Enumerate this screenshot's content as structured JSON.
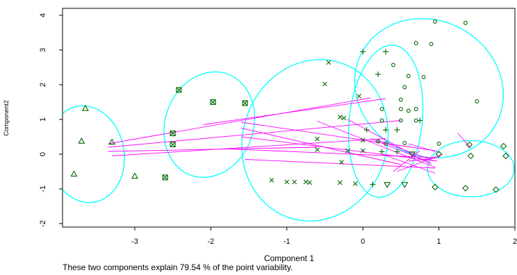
{
  "chart_data": {
    "type": "scatter",
    "title": "",
    "xlabel": "Component 1",
    "ylabel": "Component2",
    "caption": "These two components explain 79.54 % of the point variability.",
    "xlim": [
      -3.95,
      2.0
    ],
    "ylim": [
      -2.1,
      4.2
    ],
    "xticks": [
      -3,
      -2,
      -1,
      0,
      1,
      2
    ],
    "yticks": [
      -2,
      -1,
      0,
      1,
      2,
      3,
      4
    ],
    "grid": false,
    "colors": {
      "points": "#006400",
      "ellipses": "#00ffff",
      "lines": "#ff00ff",
      "axes": "#000000"
    },
    "clusters": [
      {
        "symbol": "triangle",
        "center": [
          -3.65,
          -0.15
        ],
        "points": [
          [
            -3.65,
            1.32
          ],
          [
            -3.7,
            0.38
          ],
          [
            -3.3,
            0.35
          ],
          [
            -3.8,
            -0.57
          ],
          [
            -3.0,
            -0.63
          ]
        ]
      },
      {
        "symbol": "boxed-x",
        "center": [
          -2.1,
          0.5
        ],
        "points": [
          [
            -2.42,
            1.85
          ],
          [
            -1.97,
            1.5
          ],
          [
            -1.55,
            1.47
          ],
          [
            -2.5,
            0.6
          ],
          [
            -2.5,
            0.28
          ],
          [
            -2.6,
            -0.67
          ]
        ]
      },
      {
        "symbol": "x",
        "center": [
          -0.8,
          0.25
        ],
        "points": [
          [
            -0.45,
            2.64
          ],
          [
            -0.5,
            2.02
          ],
          [
            -0.05,
            1.67
          ],
          [
            -0.3,
            1.07
          ],
          [
            -0.25,
            1.04
          ],
          [
            -0.6,
            0.44
          ],
          [
            -0.6,
            0.13
          ],
          [
            -0.2,
            0.1
          ],
          [
            0.0,
            0.4
          ],
          [
            0.0,
            0.1
          ],
          [
            -0.28,
            -0.23
          ],
          [
            -1.2,
            -0.75
          ],
          [
            -1.0,
            -0.8
          ],
          [
            -0.9,
            -0.8
          ],
          [
            -0.75,
            -0.8
          ],
          [
            -0.7,
            -0.82
          ],
          [
            -0.3,
            -0.82
          ],
          [
            -0.1,
            -0.85
          ]
        ]
      },
      {
        "symbol": "plus",
        "center": [
          0.25,
          0.85
        ],
        "points": [
          [
            0.0,
            2.95
          ],
          [
            0.3,
            2.95
          ],
          [
            0.2,
            2.3
          ],
          [
            0.05,
            0.7
          ],
          [
            0.3,
            0.7
          ],
          [
            0.45,
            0.7
          ],
          [
            0.25,
            0.07
          ],
          [
            0.45,
            0.07
          ],
          [
            0.75,
            0.97
          ],
          [
            0.13,
            -0.87
          ]
        ]
      },
      {
        "symbol": "circle",
        "center": [
          1.0,
          2.0
        ],
        "points": [
          [
            0.95,
            3.82
          ],
          [
            1.35,
            3.78
          ],
          [
            0.7,
            3.2
          ],
          [
            0.9,
            3.17
          ],
          [
            0.4,
            2.57
          ],
          [
            0.6,
            2.25
          ],
          [
            0.8,
            2.22
          ],
          [
            0.55,
            1.93
          ],
          [
            1.5,
            1.52
          ],
          [
            0.5,
            1.57
          ],
          [
            0.25,
            1.3
          ],
          [
            0.5,
            1.3
          ],
          [
            0.7,
            1.3
          ],
          [
            0.6,
            1.25
          ],
          [
            0.25,
            0.97
          ],
          [
            0.5,
            0.97
          ],
          [
            0.7,
            0.97
          ],
          [
            0.2,
            0.37
          ],
          [
            0.3,
            0.3
          ],
          [
            0.55,
            0.32
          ],
          [
            1.0,
            0.3
          ]
        ]
      },
      {
        "symbol": "inverted-triangle",
        "center": [
          0.45,
          -0.6
        ],
        "points": [
          [
            0.32,
            -0.88
          ],
          [
            0.55,
            -0.88
          ],
          [
            0.65,
            0.0
          ]
        ]
      },
      {
        "symbol": "diamond",
        "center": [
          1.45,
          -0.5
        ],
        "points": [
          [
            1.0,
            0.0
          ],
          [
            1.4,
            0.27
          ],
          [
            1.85,
            0.23
          ],
          [
            1.42,
            -0.05
          ],
          [
            1.88,
            -0.05
          ],
          [
            0.95,
            -0.95
          ],
          [
            1.35,
            -0.98
          ],
          [
            1.75,
            -1.02
          ]
        ]
      }
    ],
    "ellipses": [
      {
        "cx": -3.64,
        "cy": 0.0,
        "rx": 0.5,
        "ry": 1.4,
        "angle": -10
      },
      {
        "cx": -2.02,
        "cy": 0.85,
        "rx": 0.58,
        "ry": 1.55,
        "angle": 20
      },
      {
        "cx": -0.63,
        "cy": 0.4,
        "rx": 0.95,
        "ry": 2.35,
        "angle": 18
      },
      {
        "cx": 0.3,
        "cy": 0.95,
        "rx": 0.48,
        "ry": 2.2,
        "angle": 6
      },
      {
        "cx": 0.87,
        "cy": 1.9,
        "rx": 1.0,
        "ry": 1.95,
        "angle": 28
      },
      {
        "cx": 1.42,
        "cy": -0.42,
        "rx": 0.57,
        "ry": 0.81,
        "angle": 0
      }
    ],
    "connections": [
      [
        [
          -3.35,
          0.3
        ],
        [
          0.1,
          1.62
        ]
      ],
      [
        [
          -3.35,
          0.2
        ],
        [
          0.5,
          0.97
        ]
      ],
      [
        [
          -3.35,
          0.08
        ],
        [
          -0.6,
          0.2
        ]
      ],
      [
        [
          -3.3,
          -0.05
        ],
        [
          0.3,
          0.45
        ]
      ],
      [
        [
          -2.1,
          0.85
        ],
        [
          0.3,
          1.6
        ]
      ],
      [
        [
          -1.6,
          0.92
        ],
        [
          0.95,
          0.1
        ]
      ],
      [
        [
          -1.6,
          0.75
        ],
        [
          0.5,
          -0.3
        ]
      ],
      [
        [
          -1.6,
          0.5
        ],
        [
          0.98,
          -0.2
        ]
      ],
      [
        [
          -1.75,
          0.15
        ],
        [
          0.95,
          -0.1
        ]
      ],
      [
        [
          -1.55,
          -0.15
        ],
        [
          0.95,
          -0.4
        ]
      ],
      [
        [
          -0.6,
          0.95
        ],
        [
          0.95,
          -0.38
        ]
      ],
      [
        [
          -0.2,
          1.0
        ],
        [
          0.9,
          -0.3
        ]
      ],
      [
        [
          0.2,
          0.4
        ],
        [
          0.95,
          -0.2
        ]
      ],
      [
        [
          0.25,
          0.0
        ],
        [
          0.95,
          -0.55
        ]
      ],
      [
        [
          0.45,
          -0.5
        ],
        [
          1.05,
          0.0
        ]
      ],
      [
        [
          0.6,
          -0.2
        ],
        [
          1.0,
          -0.1
        ]
      ],
      [
        [
          0.1,
          0.45
        ],
        [
          0.9,
          -0.25
        ]
      ],
      [
        [
          1.25,
          0.6
        ],
        [
          1.42,
          0.18
        ]
      ],
      [
        [
          0.6,
          0.3
        ],
        [
          1.0,
          0.05
        ]
      ],
      [
        [
          0.4,
          -0.5
        ],
        [
          0.75,
          0.1
        ]
      ]
    ]
  }
}
